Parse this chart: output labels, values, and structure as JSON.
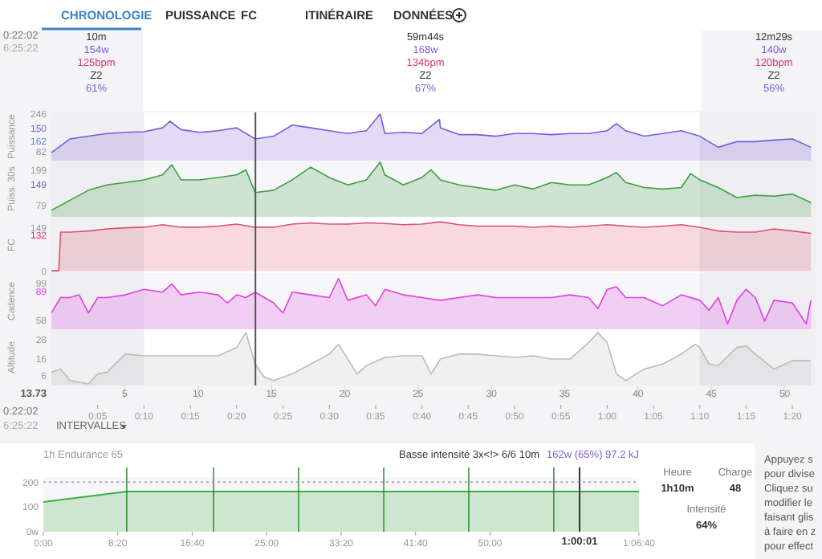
{
  "chart_data": [
    {
      "type": "other",
      "annotations": [
        "CHRONOLOGIE",
        "PUISSANCE",
        "FC",
        "ITINÉRAIRE",
        "DONNÉES",
        "0:22:02",
        "6:25:22",
        "10m",
        "154w",
        "125bpm",
        "Z2",
        "61%",
        "59m44s",
        "168w",
        "134bpm",
        "Z2",
        "67%",
        "12m29s",
        "140w",
        "120bpm",
        "Z2",
        "56%",
        "0:22:02",
        "6:25:22",
        "INTERVALLES",
        "Heure",
        "1h10m",
        "Charge",
        "48",
        "Intensité",
        "64%",
        "Appuyez s",
        "pour divise",
        "Cliquez su",
        "modifier le",
        "faisant glis",
        "à faire en z",
        "pour effect"
      ]
    },
    {
      "type": "area",
      "ylabel": "Puissance",
      "xlim": [
        0,
        82.5
      ],
      "ylim": [
        40,
        253
      ],
      "yticks": [
        82,
        246
      ],
      "tick_labels": "y",
      "annotations": [
        "150",
        "162"
      ],
      "x": [
        0,
        2,
        4,
        6,
        8,
        10,
        12,
        12.8,
        14,
        16,
        18,
        20,
        22,
        24,
        26,
        28,
        30,
        32,
        34,
        35.5,
        36,
        38,
        40,
        41.9,
        42,
        44,
        46,
        48,
        50,
        52,
        54,
        56,
        58,
        60,
        61,
        62,
        64,
        66,
        68,
        70,
        72,
        74,
        76,
        78,
        80,
        82
      ],
      "series": [
        {
          "color": "#7b5bd6",
          "values": [
            75,
            136,
            148,
            160,
            165,
            168,
            185,
            214,
            177,
            165,
            172,
            185,
            136,
            148,
            197,
            185,
            172,
            160,
            172,
            246,
            160,
            165,
            160,
            222,
            185,
            155,
            155,
            148,
            160,
            160,
            155,
            160,
            160,
            172,
            204,
            172,
            148,
            160,
            172,
            148,
            99,
            124,
            124,
            131,
            136,
            99
          ]
        }
      ],
      "bands": [
        {
          "axis": "x",
          "from": 0,
          "to": 10,
          "color": "#e9e9ee"
        },
        {
          "axis": "x",
          "from": 70,
          "to": 82.5,
          "color": "#e9e9ee"
        }
      ],
      "ref_lines": [
        {
          "axis": "x",
          "value": 22.03,
          "color": "#555555"
        }
      ]
    },
    {
      "type": "area",
      "ylabel": "Puiss. 30s",
      "xlim": [
        0,
        82.5
      ],
      "ylim": [
        40,
        230
      ],
      "yticks": [
        79,
        149,
        199
      ],
      "tick_labels": "y",
      "x": [
        0,
        2,
        4,
        6,
        8,
        10,
        12,
        13,
        14,
        16,
        18,
        20,
        21,
        22,
        24,
        26,
        28,
        30,
        32,
        34,
        35.5,
        36,
        38,
        40,
        41,
        42,
        44,
        46,
        48,
        50,
        52,
        54,
        56,
        58,
        60,
        61,
        62,
        64,
        66,
        68,
        69,
        70,
        72,
        74,
        76,
        78,
        80,
        82
      ],
      "series": [
        {
          "color": "#3f9f3f",
          "values": [
            62,
            96,
            130,
            148,
            156,
            165,
            182,
            216,
            165,
            165,
            173,
            182,
            199,
            122,
            130,
            165,
            208,
            173,
            148,
            165,
            225,
            182,
            148,
            173,
            199,
            165,
            148,
            139,
            130,
            148,
            134,
            156,
            148,
            148,
            173,
            190,
            156,
            139,
            134,
            139,
            186,
            165,
            139,
            105,
            113,
            110,
            117,
            88
          ]
        }
      ],
      "bands": [
        {
          "axis": "x",
          "from": 0,
          "to": 10,
          "color": "#e9e9ee"
        },
        {
          "axis": "x",
          "from": 70,
          "to": 82.5,
          "color": "#e9e9ee"
        }
      ],
      "ref_lines": [
        {
          "axis": "x",
          "value": 22.03,
          "color": "#555555"
        }
      ]
    },
    {
      "type": "area",
      "ylabel": "FC",
      "xlim": [
        0,
        82.5
      ],
      "ylim": [
        -8,
        187
      ],
      "yticks": [
        0,
        149
      ],
      "tick_labels": "y",
      "annotations": [
        "132"
      ],
      "x": [
        0,
        0.8,
        1,
        2,
        4,
        6,
        8,
        10,
        12,
        14,
        16,
        18,
        20,
        22,
        24,
        26,
        28,
        30,
        32,
        34,
        36,
        38,
        40,
        42,
        44,
        46,
        48,
        50,
        52,
        54,
        56,
        58,
        60,
        62,
        64,
        66,
        68,
        70,
        72,
        74,
        76,
        78,
        80,
        82
      ],
      "series": [
        {
          "color": "#d9536f",
          "values": [
            0,
            0,
            134,
            134,
            138,
            145,
            149,
            151,
            160,
            151,
            151,
            155,
            162,
            151,
            151,
            162,
            166,
            162,
            162,
            166,
            164,
            160,
            162,
            170,
            160,
            155,
            155,
            155,
            151,
            155,
            151,
            155,
            160,
            155,
            151,
            155,
            160,
            151,
            138,
            134,
            134,
            145,
            138,
            130
          ]
        }
      ],
      "bands": [
        {
          "axis": "x",
          "from": 0,
          "to": 10,
          "color": "#e9e9ee"
        },
        {
          "axis": "x",
          "from": 70,
          "to": 82.5,
          "color": "#e9e9ee"
        }
      ],
      "ref_lines": [
        {
          "axis": "x",
          "value": 22.03,
          "color": "#555555"
        }
      ]
    },
    {
      "type": "area",
      "ylabel": "Cadence",
      "xlim": [
        0,
        82.5
      ],
      "ylim": [
        48,
        110
      ],
      "yticks": [
        58,
        99
      ],
      "tick_labels": "y",
      "annotations": [
        "89"
      ],
      "x": [
        0,
        1,
        2,
        3,
        4,
        5,
        6,
        8,
        10,
        12,
        13,
        14,
        16,
        18,
        19,
        20,
        21,
        22,
        24,
        25,
        26,
        28,
        30,
        31,
        32,
        34,
        35,
        36,
        38,
        40,
        42,
        44,
        46,
        48,
        50,
        52,
        54,
        56,
        58,
        59,
        60,
        61,
        62,
        64,
        66,
        68,
        70,
        71,
        72,
        73,
        74,
        75,
        76,
        77,
        78,
        80,
        81.5,
        82
      ],
      "series": [
        {
          "color": "#e040e0",
          "values": [
            66,
            83,
            83,
            86,
            66,
            83,
            83,
            86,
            92,
            89,
            98,
            86,
            89,
            86,
            77,
            86,
            83,
            89,
            77,
            66,
            89,
            86,
            83,
            104,
            80,
            86,
            74,
            92,
            86,
            83,
            80,
            83,
            86,
            83,
            83,
            83,
            83,
            86,
            83,
            71,
            92,
            95,
            83,
            83,
            74,
            86,
            80,
            69,
            83,
            54,
            80,
            92,
            83,
            57,
            80,
            77,
            54,
            80
          ]
        }
      ],
      "bands": [
        {
          "axis": "x",
          "from": 0,
          "to": 10,
          "color": "#e9e9ee"
        },
        {
          "axis": "x",
          "from": 70,
          "to": 82.5,
          "color": "#e9e9ee"
        }
      ],
      "ref_lines": [
        {
          "axis": "x",
          "value": 22.03,
          "color": "#555555"
        }
      ]
    },
    {
      "type": "area",
      "ylabel": "Altitude",
      "xlim": [
        0,
        82.5
      ],
      "ylim": [
        0,
        34
      ],
      "yticks": [
        6,
        16,
        28
      ],
      "xticks": [
        {
          "value": 5,
          "label": "0:05"
        },
        {
          "value": 10,
          "label": "0:10"
        },
        {
          "value": 15,
          "label": "0:15"
        },
        {
          "value": 20,
          "label": "0:20"
        },
        {
          "value": 25,
          "label": "0:25"
        },
        {
          "value": 30,
          "label": "0:30"
        },
        {
          "value": 35,
          "label": "0:35"
        },
        {
          "value": 40,
          "label": "0:40"
        },
        {
          "value": 45,
          "label": "0:45"
        },
        {
          "value": 50,
          "label": "0:50"
        },
        {
          "value": 55,
          "label": "0:55"
        },
        {
          "value": 60,
          "label": "1:00"
        },
        {
          "value": 65,
          "label": "1:05"
        },
        {
          "value": 70,
          "label": "1:10"
        },
        {
          "value": 75,
          "label": "1:15"
        },
        {
          "value": 80,
          "label": "1:20"
        }
      ],
      "x2lim": [
        0,
        52.1
      ],
      "x2ticks": [
        5,
        10,
        15,
        20,
        25,
        30,
        35,
        40,
        45,
        50
      ],
      "annotations": [
        "13.73"
      ],
      "x": [
        0,
        1,
        2,
        4,
        5,
        6,
        8,
        10,
        12,
        14,
        16,
        18,
        20,
        21,
        22,
        23,
        24,
        26,
        28,
        30,
        31,
        32,
        33,
        34,
        36,
        38,
        40,
        41,
        42,
        44,
        46,
        48,
        50,
        52,
        54,
        56,
        58,
        59,
        60,
        61,
        62,
        64,
        66,
        68,
        69.5,
        70,
        71,
        72,
        74,
        75,
        76,
        78,
        80,
        82
      ],
      "series": [
        {
          "color": "#bbbbbb",
          "values": [
            8,
            10,
            3,
            1,
            7,
            8,
            19,
            18,
            18,
            18,
            18,
            18,
            23,
            32,
            13,
            5,
            3,
            7,
            13,
            19,
            25,
            16,
            7,
            12,
            17,
            18,
            18,
            7,
            16,
            19,
            19,
            18,
            17,
            18,
            16,
            16,
            26,
            32,
            26,
            7,
            3,
            10,
            13,
            19,
            25,
            23,
            13,
            12,
            23,
            24,
            19,
            10,
            15,
            15
          ]
        }
      ],
      "bands": [
        {
          "axis": "x",
          "from": 0,
          "to": 10,
          "color": "#e9e9ee"
        },
        {
          "axis": "x",
          "from": 70,
          "to": 82.5,
          "color": "#e9e9ee"
        }
      ],
      "ref_lines": [
        {
          "axis": "x",
          "value": 22.03,
          "color": "#555555"
        }
      ]
    },
    {
      "type": "area",
      "title": "1h Endurance 65",
      "subtitle": "Basse intensité 3x<!> 6/6 10m",
      "annotations": [
        "162w (65%) 97.2 kJ",
        {
          "text": "1:00:01",
          "x": 3601,
          "y": 0
        }
      ],
      "xlim": [
        0,
        4000
      ],
      "ylim": [
        0,
        220
      ],
      "yticks": [
        {
          "value": 0,
          "label": "0w"
        },
        100,
        200
      ],
      "xticks": [
        {
          "value": 0,
          "label": "0:00"
        },
        {
          "value": 500,
          "label": "8:20"
        },
        {
          "value": 1000,
          "label": "16:40"
        },
        {
          "value": 1500,
          "label": "25:00"
        },
        {
          "value": 2000,
          "label": "33:20"
        },
        {
          "value": 2500,
          "label": "41:40"
        },
        {
          "value": 3000,
          "label": "50:00"
        },
        {
          "value": 4000,
          "label": "1:06:40"
        }
      ],
      "x": [
        0,
        560,
        1143,
        1714,
        2286,
        2857,
        3428,
        4000
      ],
      "series": [
        {
          "color": "#3dae3d",
          "values": [
            120,
            162,
            162,
            162,
            162,
            162,
            162,
            162
          ]
        }
      ],
      "ref_lines": [
        {
          "axis": "x",
          "value": 560,
          "color": "#2a7f2a"
        },
        {
          "axis": "x",
          "value": 1143,
          "color": "#2a7f2a"
        },
        {
          "axis": "x",
          "value": 1714,
          "color": "#2a7f2a"
        },
        {
          "axis": "x",
          "value": 2286,
          "color": "#2a7f2a"
        },
        {
          "axis": "x",
          "value": 2857,
          "color": "#2a7f2a"
        },
        {
          "axis": "x",
          "value": 3428,
          "color": "#2a7f2a"
        },
        {
          "axis": "x",
          "value": 3601,
          "color": "#333333"
        },
        {
          "axis": "y",
          "value": 200,
          "color": "#999999",
          "line_style": "dotted"
        }
      ]
    }
  ]
}
